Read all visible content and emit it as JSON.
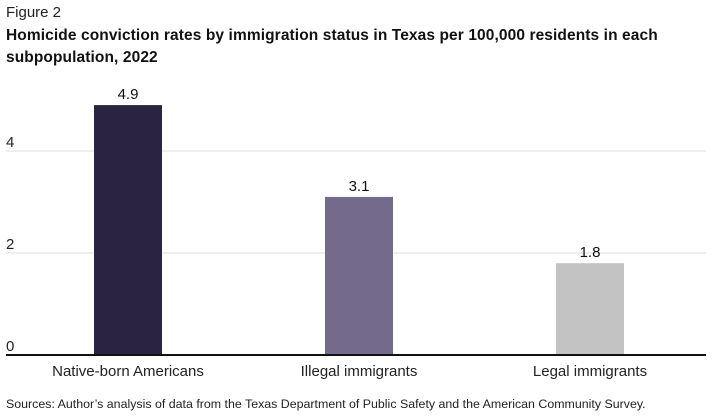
{
  "figure_label": "Figure 2",
  "title": "Homicide conviction rates by immigration status in Texas per 100,000 residents in each subpopulation, 2022",
  "source": "Sources: Author’s analysis of data from the Texas Department of Public Safety and the American Community Survey.",
  "chart_data": {
    "type": "bar",
    "title": "Homicide conviction rates by immigration status in Texas per 100,000 residents in each subpopulation, 2022",
    "xlabel": "",
    "ylabel": "",
    "categories": [
      "Native-born Americans",
      "Illegal immigrants",
      "Legal immigrants"
    ],
    "values": [
      4.9,
      3.1,
      1.8
    ],
    "data_labels": [
      "4.9",
      "3.1",
      "1.8"
    ],
    "bar_colors": [
      "#2a2440",
      "#736a8c",
      "#c3c3c3"
    ],
    "yticks": [
      0,
      2,
      4
    ],
    "ytick_labels": [
      "0",
      "2",
      "4"
    ],
    "ylim": [
      0,
      5.0
    ],
    "grid": true,
    "legend": "none"
  }
}
